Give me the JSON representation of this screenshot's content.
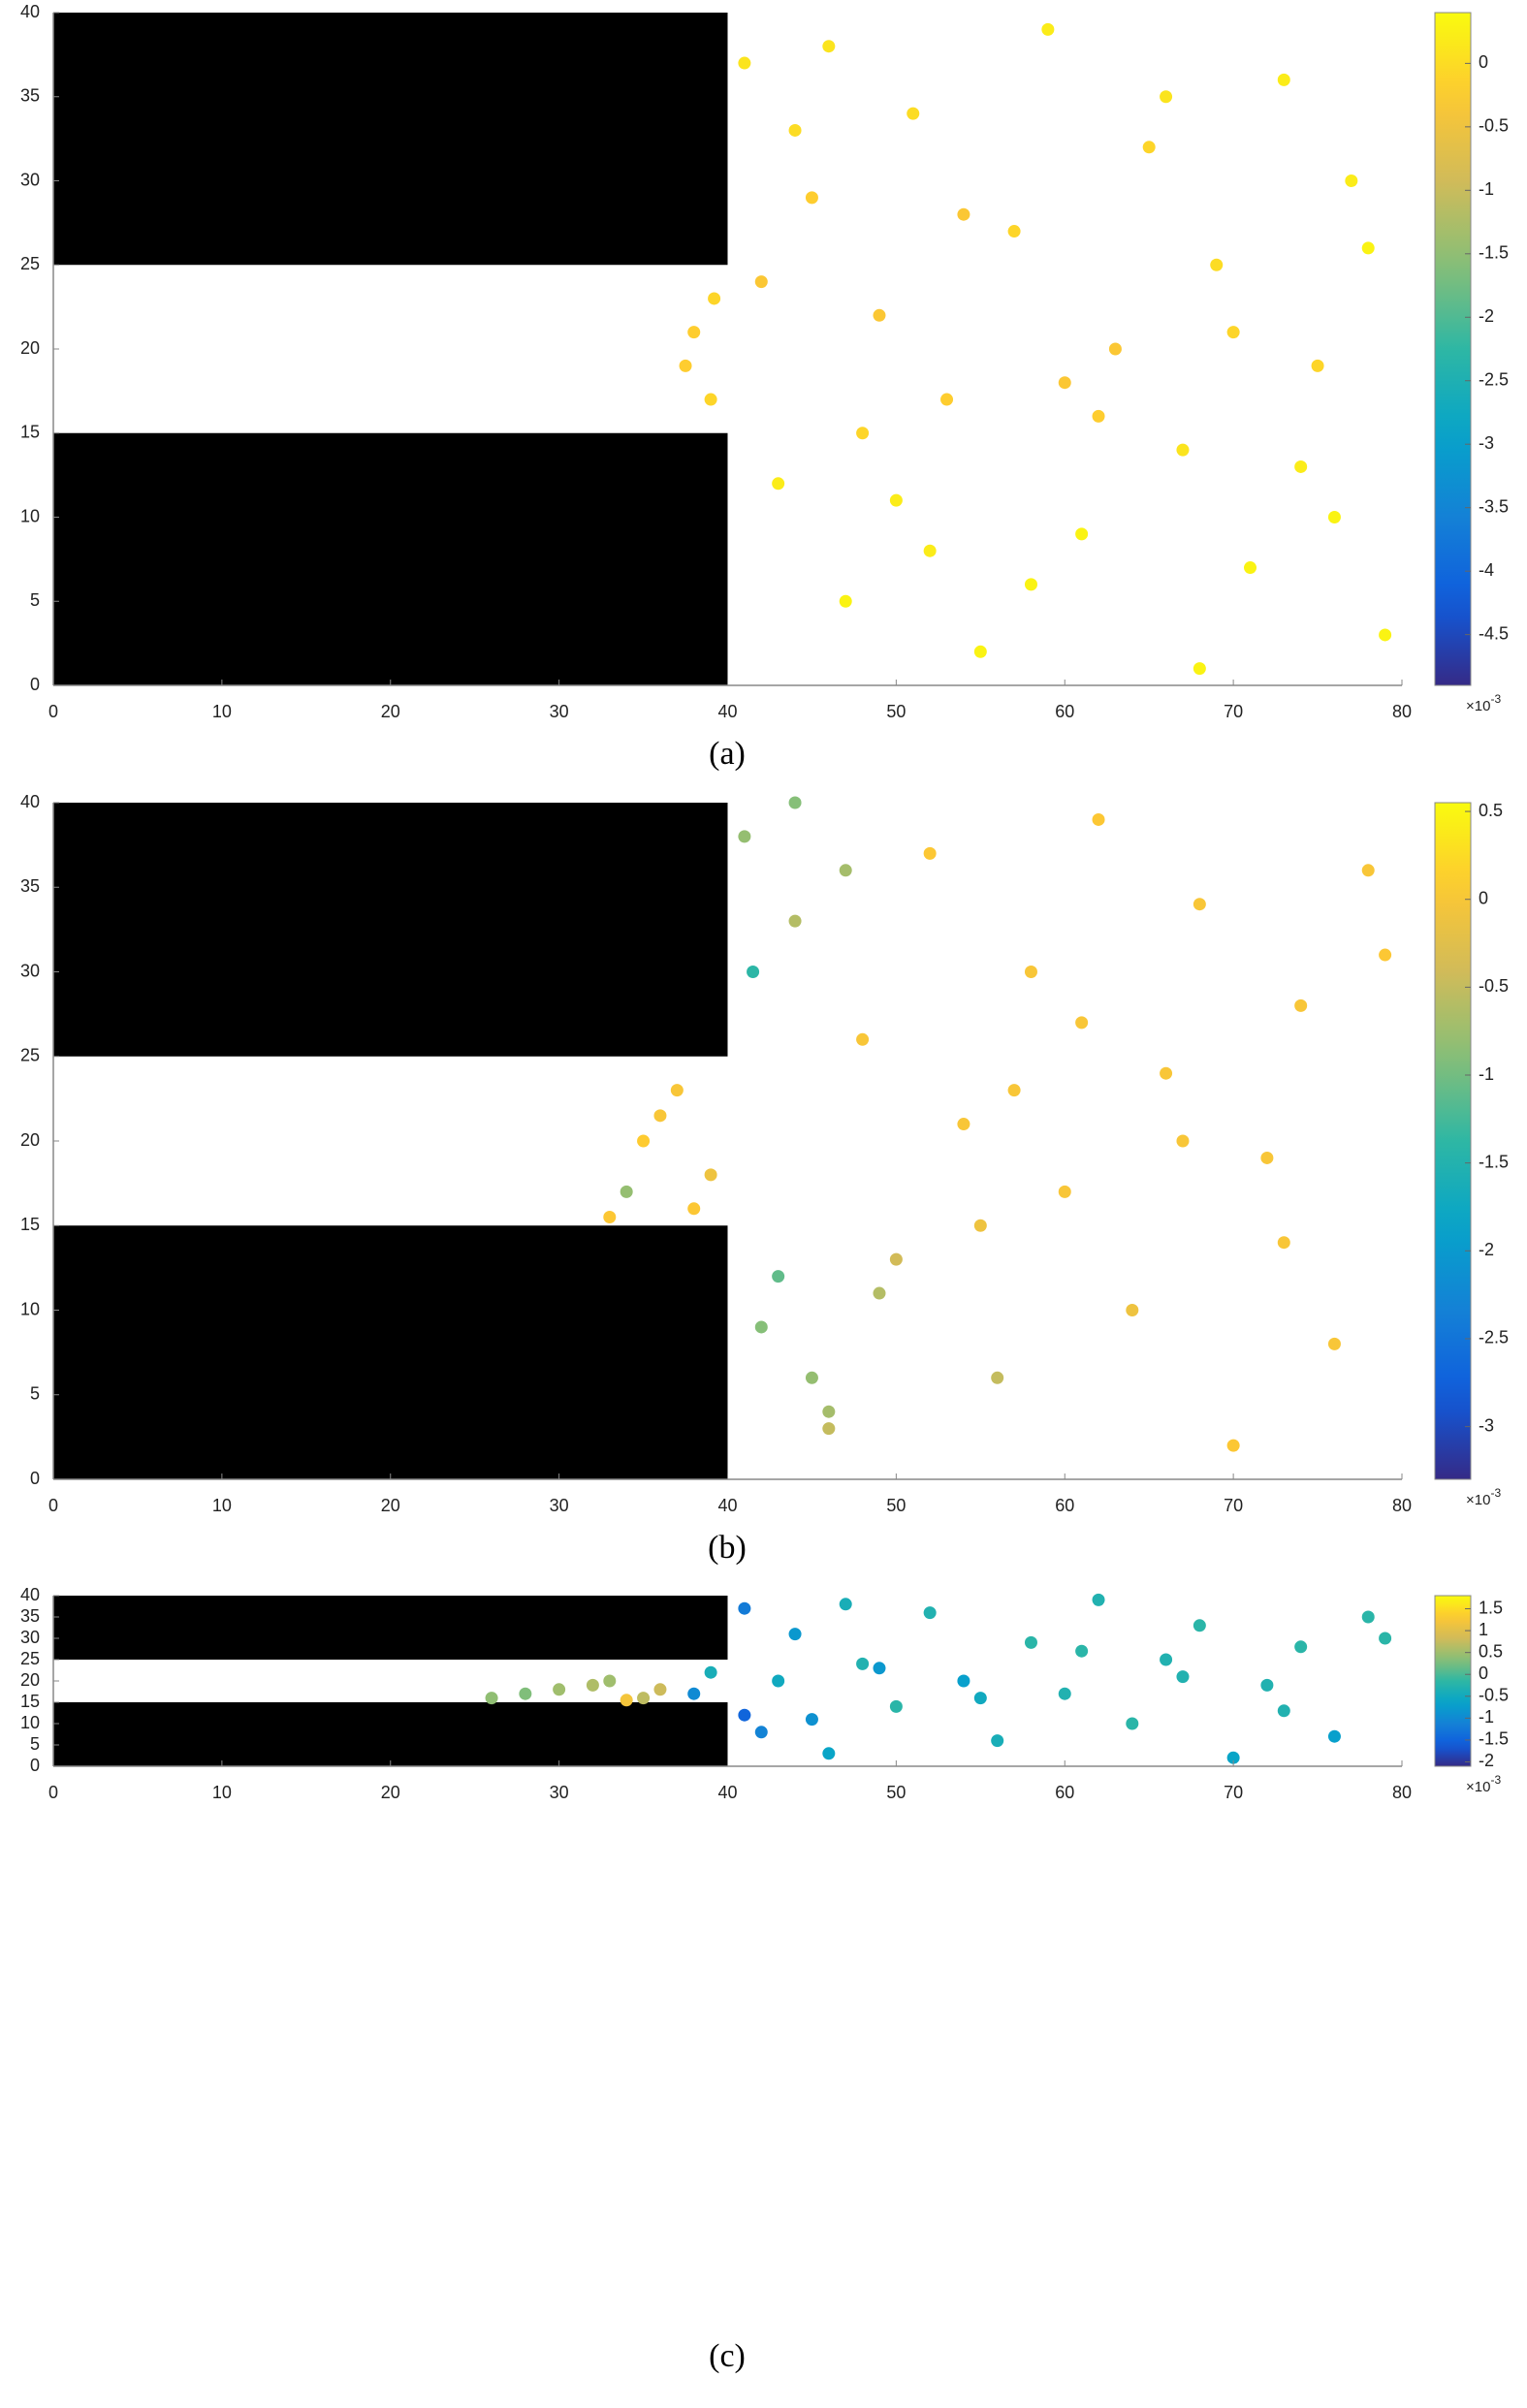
{
  "chart_data": [
    {
      "type": "scatter",
      "caption": "(a)",
      "colormap": "parula",
      "xlim": [
        0,
        80
      ],
      "ylim": [
        0,
        40
      ],
      "xticks": [
        0,
        10,
        20,
        30,
        40,
        50,
        60,
        70,
        80
      ],
      "yticks": [
        0,
        5,
        10,
        15,
        20,
        25,
        30,
        35,
        40
      ],
      "obstacles": [
        {
          "x": [
            0,
            40
          ],
          "y": [
            25,
            40
          ]
        },
        {
          "x": [
            0,
            40
          ],
          "y": [
            0,
            15
          ]
        }
      ],
      "obstacle_color": "#000000",
      "clim": [
        -4.9,
        0.4
      ],
      "cticks": [
        0,
        -0.5,
        -1,
        -1.5,
        -2,
        -2.5,
        -3,
        -3.5,
        -4,
        -4.5
      ],
      "cbar_scale_label": "×10",
      "cbar_scale_exponent": "-3",
      "x": [
        41,
        43,
        45,
        47,
        49,
        51,
        53,
        55,
        57,
        59,
        61,
        63,
        65,
        67,
        69,
        71,
        73,
        75,
        77,
        79,
        42,
        46,
        50,
        54,
        58,
        62,
        66,
        70,
        74,
        78,
        44,
        52,
        60,
        68,
        76,
        38,
        39,
        37.5,
        39.2,
        48
      ],
      "y": [
        37,
        12,
        29,
        5,
        22,
        34,
        17,
        2,
        27,
        39,
        9,
        20,
        32,
        14,
        25,
        7,
        36,
        19,
        30,
        3,
        24,
        38,
        11,
        28,
        6,
        16,
        35,
        21,
        13,
        26,
        33,
        8,
        18,
        1,
        10,
        21,
        17,
        19,
        23,
        15
      ],
      "color_values": [
        0.1,
        0.2,
        -0.2,
        0.3,
        -0.3,
        0,
        -0.2,
        0.3,
        -0.1,
        0.2,
        0.3,
        -0.3,
        -0.1,
        0.1,
        0,
        0.3,
        0.2,
        -0.1,
        0.2,
        0.3,
        -0.3,
        0.1,
        0.2,
        -0.3,
        0.3,
        -0.2,
        0.1,
        -0.1,
        0.2,
        0.3,
        0,
        0.2,
        -0.3,
        0.3,
        0.3,
        -0.2,
        -0.1,
        -0.2,
        -0.1,
        -0.1
      ]
    },
    {
      "type": "scatter",
      "caption": "(b)",
      "colormap": "parula",
      "xlim": [
        0,
        80
      ],
      "ylim": [
        0,
        40
      ],
      "xticks": [
        0,
        10,
        20,
        30,
        40,
        50,
        60,
        70,
        80
      ],
      "yticks": [
        0,
        5,
        10,
        15,
        20,
        25,
        30,
        35,
        40
      ],
      "obstacles": [
        {
          "x": [
            0,
            40
          ],
          "y": [
            25,
            40
          ]
        },
        {
          "x": [
            0,
            40
          ],
          "y": [
            0,
            15
          ]
        }
      ],
      "obstacle_color": "#000000",
      "clim": [
        -3.3,
        0.55
      ],
      "cticks": [
        0.5,
        0,
        -0.5,
        -1,
        -1.5,
        -2,
        -2.5,
        -3
      ],
      "cbar_scale_label": "×10",
      "cbar_scale_exponent": "-3",
      "x": [
        41,
        42,
        44,
        46,
        48,
        50,
        52,
        54,
        56,
        58,
        60,
        62,
        64,
        66,
        68,
        70,
        72,
        74,
        76,
        78,
        43,
        45,
        47,
        49,
        55,
        61,
        67,
        73,
        79,
        41.5,
        44,
        46,
        33,
        35,
        37,
        39,
        34,
        36,
        38,
        57
      ],
      "y": [
        38,
        9,
        33,
        4,
        26,
        13,
        37,
        21,
        6,
        30,
        17,
        39,
        10,
        24,
        34,
        2,
        19,
        28,
        8,
        36,
        12,
        6,
        36,
        11,
        15,
        27,
        20,
        14,
        31,
        30,
        40,
        3,
        15.5,
        20,
        23,
        18,
        17,
        21.5,
        16,
        23
      ],
      "color_values": [
        -0.8,
        -0.9,
        -0.6,
        -0.7,
        0,
        -0.4,
        0.05,
        0,
        -0.5,
        0,
        0,
        0.05,
        -0.1,
        0,
        0,
        0.05,
        0,
        0,
        0,
        0,
        -1.1,
        -0.8,
        -0.7,
        -0.6,
        -0.1,
        0,
        0,
        0,
        0.05,
        -1.4,
        -0.9,
        -0.5,
        0.05,
        0.1,
        0,
        -0.1,
        -0.8,
        0,
        0.05,
        0
      ]
    },
    {
      "type": "scatter",
      "caption": "(c)",
      "colormap": "parula",
      "xlim": [
        0,
        80
      ],
      "ylim": [
        0,
        40
      ],
      "xticks": [
        0,
        10,
        20,
        30,
        40,
        50,
        60,
        70,
        80
      ],
      "yticks": [
        0,
        5,
        10,
        15,
        20,
        25,
        30,
        35,
        40
      ],
      "obstacles": [
        {
          "x": [
            0,
            40
          ],
          "y": [
            25,
            40
          ]
        },
        {
          "x": [
            0,
            40
          ],
          "y": [
            0,
            15
          ]
        }
      ],
      "obstacle_color": "#000000",
      "clim": [
        -2.1,
        1.8
      ],
      "cticks": [
        1.5,
        1,
        0.5,
        0,
        -0.5,
        -1,
        -1.5,
        -2
      ],
      "cbar_scale_label": "×10",
      "cbar_scale_exponent": "-3",
      "x": [
        41,
        42,
        44,
        46,
        48,
        50,
        52,
        54,
        56,
        58,
        60,
        62,
        64,
        66,
        68,
        70,
        72,
        74,
        76,
        78,
        41,
        43,
        45,
        47,
        49,
        55,
        61,
        67,
        73,
        79,
        26,
        28,
        30,
        32,
        34,
        36,
        38,
        33,
        35,
        39
      ],
      "y": [
        37,
        8,
        31,
        3,
        24,
        14,
        36,
        20,
        6,
        29,
        17,
        39,
        10,
        25,
        33,
        2,
        19,
        28,
        7,
        35,
        12,
        20,
        11,
        38,
        23,
        16,
        27,
        21,
        13,
        30,
        16,
        17,
        18,
        19,
        15.5,
        18,
        17,
        20,
        16,
        22
      ],
      "color_values": [
        -1.2,
        -1.1,
        -0.8,
        -0.6,
        -0.3,
        -0.2,
        -0.3,
        -0.7,
        -0.4,
        -0.2,
        -0.3,
        -0.3,
        -0.2,
        -0.3,
        -0.2,
        -0.6,
        -0.3,
        -0.2,
        -0.7,
        -0.2,
        -1.5,
        -0.5,
        -0.9,
        -0.4,
        -0.8,
        -0.5,
        -0.2,
        -0.3,
        -0.3,
        -0.2,
        0.4,
        0.3,
        0.5,
        0.6,
        1.2,
        0.8,
        -1.0,
        0.5,
        0.7,
        -0.4
      ]
    }
  ]
}
